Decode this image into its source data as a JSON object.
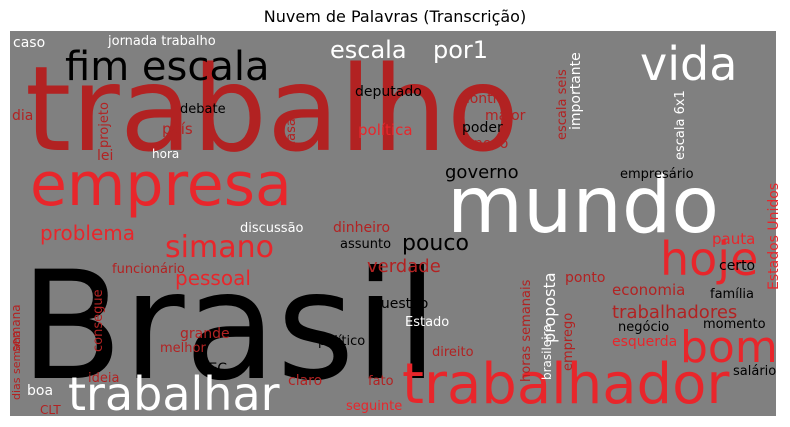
{
  "title": "Nuvem de Palavras (Transcrição)",
  "colors": {
    "background": "#808080",
    "black": "#000000",
    "white": "#ffffff",
    "dark_red": "#b22222",
    "red": "#e8262b",
    "light_red": "#cc3a3a"
  },
  "chart_data": {
    "type": "wordcloud",
    "title": "Nuvem de Palavras (Transcrição)",
    "words": [
      {
        "text": "Brasil",
        "color": "black"
      },
      {
        "text": "trabalho",
        "color": "dark_red"
      },
      {
        "text": "mundo",
        "color": "white"
      },
      {
        "text": "empresa",
        "color": "red"
      },
      {
        "text": "trabalhador",
        "color": "red"
      },
      {
        "text": "trabalhar",
        "color": "white"
      },
      {
        "text": "fim escala",
        "color": "black"
      },
      {
        "text": "vida",
        "color": "white"
      },
      {
        "text": "hoje",
        "color": "red"
      },
      {
        "text": "bom",
        "color": "red"
      },
      {
        "text": "simano",
        "color": "red"
      },
      {
        "text": "escala",
        "color": "white"
      },
      {
        "text": "por1",
        "color": "white"
      },
      {
        "text": "pouco",
        "color": "black"
      },
      {
        "text": "governo",
        "color": "black"
      },
      {
        "text": "problema",
        "color": "red"
      },
      {
        "text": "verdade",
        "color": "dark_red"
      },
      {
        "text": "pessoal",
        "color": "red"
      },
      {
        "text": "trabalhadores",
        "color": "dark_red"
      },
      {
        "text": "proposta",
        "color": "white"
      },
      {
        "text": "jornada trabalho",
        "color": "white"
      },
      {
        "text": "deputado",
        "color": "black"
      },
      {
        "text": "política",
        "color": "red"
      },
      {
        "text": "debate",
        "color": "black"
      },
      {
        "text": "país",
        "color": "dark_red"
      },
      {
        "text": "lei",
        "color": "dark_red"
      },
      {
        "text": "hora",
        "color": "white"
      },
      {
        "text": "projeto",
        "color": "dark_red"
      },
      {
        "text": "contra",
        "color": "dark_red"
      },
      {
        "text": "maior",
        "color": "dark_red"
      },
      {
        "text": "poder",
        "color": "black"
      },
      {
        "text": "novo",
        "color": "dark_red"
      },
      {
        "text": "importante",
        "color": "white"
      },
      {
        "text": "escala seis",
        "color": "dark_red"
      },
      {
        "text": "escala 6x1",
        "color": "white"
      },
      {
        "text": "economia",
        "color": "dark_red"
      },
      {
        "text": "pauta",
        "color": "red"
      },
      {
        "text": "certo",
        "color": "black"
      },
      {
        "text": "empresário",
        "color": "black"
      },
      {
        "text": "Estados Unidos",
        "color": "red"
      },
      {
        "text": "família",
        "color": "black"
      },
      {
        "text": "discussão",
        "color": "white"
      },
      {
        "text": "dinheiro",
        "color": "dark_red"
      },
      {
        "text": "assunto",
        "color": "black"
      },
      {
        "text": "questão",
        "color": "black"
      },
      {
        "text": "funcionário",
        "color": "dark_red"
      },
      {
        "text": "grande",
        "color": "dark_red"
      },
      {
        "text": "consegue",
        "color": "dark_red"
      },
      {
        "text": "Estado",
        "color": "white"
      },
      {
        "text": "ponto",
        "color": "dark_red"
      },
      {
        "text": "negócio",
        "color": "black"
      },
      {
        "text": "esquerda",
        "color": "red"
      },
      {
        "text": "momento",
        "color": "black"
      },
      {
        "text": "brasileiro",
        "color": "white"
      },
      {
        "text": "horas semanais",
        "color": "dark_red"
      },
      {
        "text": "emprego",
        "color": "dark_red"
      },
      {
        "text": "direito",
        "color": "dark_red"
      },
      {
        "text": "político",
        "color": "black"
      },
      {
        "text": "melhor",
        "color": "dark_red"
      },
      {
        "text": "ideia",
        "color": "dark_red"
      },
      {
        "text": "PEC",
        "color": "black"
      },
      {
        "text": "claro",
        "color": "dark_red"
      },
      {
        "text": "fato",
        "color": "dark_red"
      },
      {
        "text": "seguinte",
        "color": "red"
      },
      {
        "text": "salário",
        "color": "black"
      },
      {
        "text": "boa",
        "color": "white"
      },
      {
        "text": "CLT",
        "color": "dark_red"
      },
      {
        "text": "caso",
        "color": "white"
      },
      {
        "text": "dia",
        "color": "dark_red"
      },
      {
        "text": "casa",
        "color": "dark_red"
      },
      {
        "text": "semana",
        "color": "dark_red"
      },
      {
        "text": "dias semana",
        "color": "dark_red"
      }
    ]
  }
}
